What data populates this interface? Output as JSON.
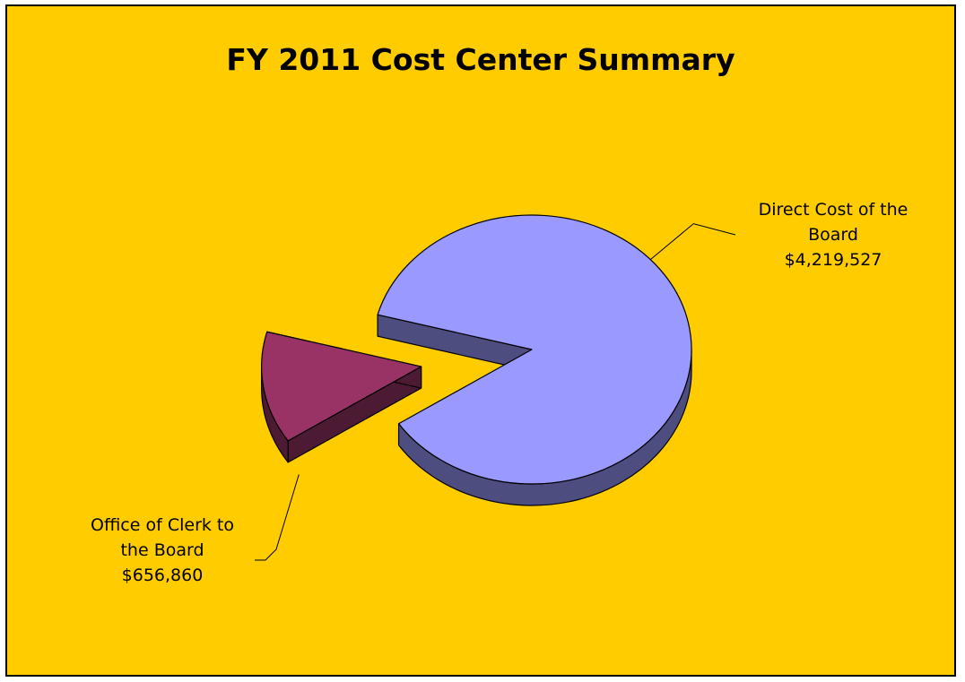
{
  "chart_data": {
    "type": "pie",
    "title": "FY 2011 Cost Center Summary",
    "background": "#FFCC00",
    "three_d": true,
    "slices": [
      {
        "label": "Direct Cost of the Board",
        "value": 4219527,
        "display_value": "$4,219,527",
        "label_lines": [
          "Direct Cost of the",
          "Board",
          "$4,219,527"
        ],
        "color": "#9999FF",
        "side_color": "#4D4D80",
        "exploded": false
      },
      {
        "label": "Office of Clerk to the Board",
        "value": 656860,
        "display_value": "$656,860",
        "label_lines": [
          "Office of Clerk to",
          "the Board",
          "$656,860"
        ],
        "color": "#993366",
        "side_color": "#4D1A33",
        "exploded": true
      }
    ]
  }
}
